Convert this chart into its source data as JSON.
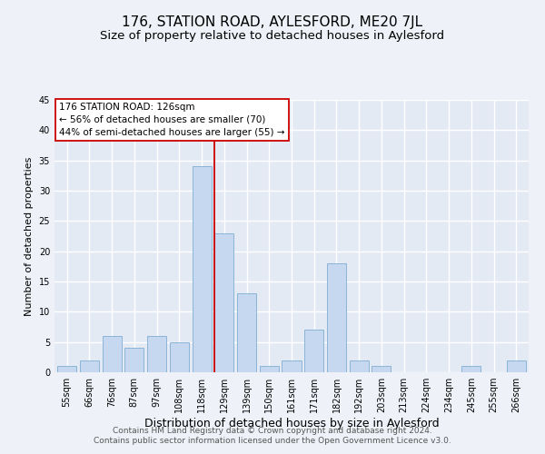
{
  "title": "176, STATION ROAD, AYLESFORD, ME20 7JL",
  "subtitle": "Size of property relative to detached houses in Aylesford",
  "xlabel": "Distribution of detached houses by size in Aylesford",
  "ylabel": "Number of detached properties",
  "footer_line1": "Contains HM Land Registry data © Crown copyright and database right 2024.",
  "footer_line2": "Contains public sector information licensed under the Open Government Licence v3.0.",
  "categories": [
    "55sqm",
    "66sqm",
    "76sqm",
    "87sqm",
    "97sqm",
    "108sqm",
    "118sqm",
    "129sqm",
    "139sqm",
    "150sqm",
    "161sqm",
    "171sqm",
    "182sqm",
    "192sqm",
    "203sqm",
    "213sqm",
    "224sqm",
    "234sqm",
    "245sqm",
    "255sqm",
    "266sqm"
  ],
  "values": [
    1,
    2,
    6,
    4,
    6,
    5,
    34,
    23,
    13,
    1,
    2,
    7,
    18,
    2,
    1,
    0,
    0,
    0,
    1,
    0,
    2
  ],
  "bar_color": "#c5d8f0",
  "bar_edge_color": "#8ab4d8",
  "vline_color": "#cc0000",
  "annotation_title": "176 STATION ROAD: 126sqm",
  "annotation_line1": "← 56% of detached houses are smaller (70)",
  "annotation_line2": "44% of semi-detached houses are larger (55) →",
  "annotation_box_facecolor": "#ffffff",
  "annotation_box_edgecolor": "#cc0000",
  "ylim": [
    0,
    45
  ],
  "yticks": [
    0,
    5,
    10,
    15,
    20,
    25,
    30,
    35,
    40,
    45
  ],
  "bg_color": "#eef2f8",
  "plot_bg_color": "#e4eaf4",
  "grid_color": "#ffffff",
  "title_fontsize": 11,
  "subtitle_fontsize": 9.5,
  "xlabel_fontsize": 9,
  "ylabel_fontsize": 8,
  "tick_fontsize": 7,
  "annot_fontsize": 7.5,
  "footer_fontsize": 6.5
}
